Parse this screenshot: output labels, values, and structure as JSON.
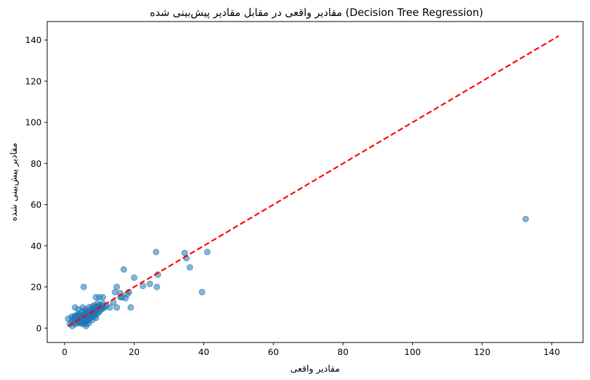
{
  "chart_data": {
    "type": "scatter",
    "title": "مقادیر واقعی در مقابل مقادیر پیش‌بینی شده (Decision Tree Regression)",
    "xlabel": "مقادیر واقعی",
    "ylabel": "مقادیر پیش‌بینی شده",
    "xlim": [
      -5,
      149
    ],
    "ylim": [
      -7,
      149
    ],
    "xticks": [
      0,
      20,
      40,
      60,
      80,
      100,
      120,
      140
    ],
    "yticks": [
      0,
      20,
      40,
      60,
      80,
      100,
      120,
      140
    ],
    "grid": false,
    "point_color": "#1f77b4",
    "point_alpha": 0.55,
    "reference_line": {
      "from": [
        1,
        1
      ],
      "to": [
        142,
        142
      ],
      "color": "#ff0000",
      "style": "dashed"
    },
    "series": [
      {
        "x": [
          1,
          1.5,
          2,
          2.2,
          2.5,
          2.8,
          3,
          3,
          3.2,
          3.5,
          3.6,
          3.8,
          4,
          4,
          4.2,
          4.5,
          4.5,
          4.8,
          5,
          5,
          5,
          5.2,
          5.5,
          5.5,
          5.8,
          6,
          6,
          6,
          6.2,
          6.5,
          6.5,
          6.8,
          7,
          7,
          7,
          7.2,
          7.5,
          7.5,
          7.8,
          8,
          8,
          8,
          8.2,
          8.5,
          8.5,
          8.8,
          9,
          9,
          9.2,
          9.5,
          9.5,
          9.8,
          10,
          10,
          10.2,
          10.5,
          10.8,
          11,
          11,
          11.5,
          12,
          3,
          4,
          5,
          6,
          7,
          8,
          9,
          10,
          2.5,
          3.5,
          4.5,
          5.5,
          6.5,
          7.5,
          8.5,
          5.5,
          6,
          4,
          3,
          9,
          10,
          11,
          5,
          6,
          7,
          8,
          9,
          2,
          13,
          14,
          14.5,
          15,
          15,
          16,
          16,
          16.5,
          17,
          17.5,
          18,
          18.5,
          19,
          20,
          22.5,
          24.5,
          26.5,
          26.8,
          26.3,
          34.5,
          35,
          36,
          39.5,
          41,
          132.5
        ],
        "y": [
          4.5,
          2,
          3,
          1,
          4,
          2.5,
          5.5,
          3.5,
          2,
          6,
          4.5,
          3,
          5,
          7,
          2.5,
          6,
          4,
          3,
          8,
          5,
          2,
          10,
          6.5,
          4,
          3,
          7.5,
          5,
          9,
          1,
          6,
          3.5,
          8,
          6.5,
          10,
          4,
          5,
          9,
          7,
          5.5,
          8,
          10.5,
          6,
          9,
          7.5,
          11,
          6,
          10,
          8,
          7,
          9,
          12,
          7.5,
          10,
          11,
          8.5,
          9.5,
          11,
          9.5,
          12,
          10,
          11,
          6,
          6,
          5.5,
          7,
          6.5,
          8.5,
          10,
          11,
          5,
          4,
          3,
          2.5,
          4,
          6,
          7,
          20,
          8,
          9,
          10,
          15,
          15,
          15,
          3,
          2,
          2.5,
          4,
          5,
          5.5,
          10,
          12.5,
          17.5,
          10,
          20,
          17,
          15,
          15,
          28.5,
          14.5,
          16.5,
          17.5,
          10,
          24.5,
          20.5,
          21.5,
          20,
          26,
          37,
          36.5,
          34,
          29.5,
          17.5,
          37,
          53
        ]
      }
    ]
  }
}
